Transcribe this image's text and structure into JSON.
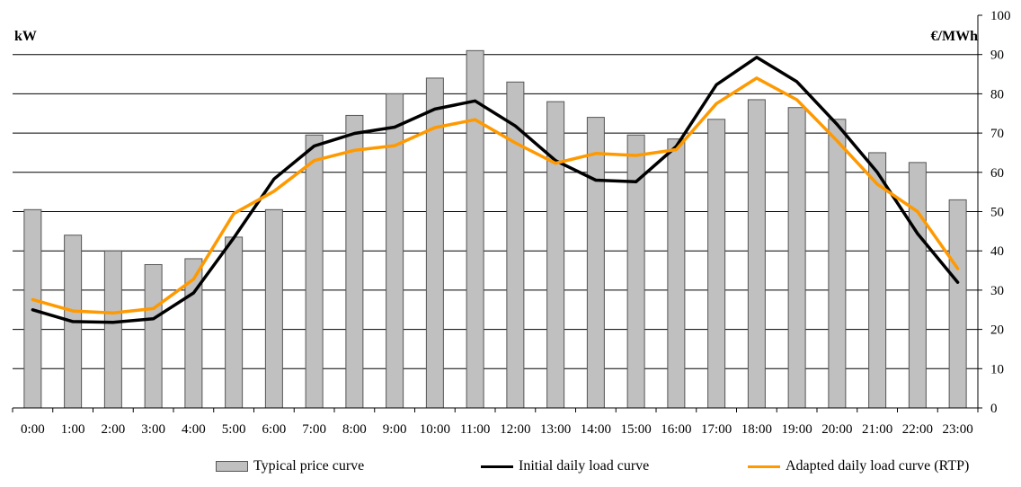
{
  "chart_data": {
    "type": "bar+line",
    "categories": [
      "0:00",
      "1:00",
      "2:00",
      "3:00",
      "4:00",
      "5:00",
      "6:00",
      "7:00",
      "8:00",
      "9:00",
      "10:00",
      "11:00",
      "12:00",
      "13:00",
      "14:00",
      "15:00",
      "16:00",
      "17:00",
      "18:00",
      "19:00",
      "20:00",
      "21:00",
      "22:00",
      "23:00"
    ],
    "left_axis": {
      "label": "kW",
      "min": 0,
      "max": 100,
      "gridlines": [
        10,
        20,
        30,
        40,
        50,
        60,
        70,
        80,
        90
      ]
    },
    "right_axis": {
      "label": "€/MWh",
      "min": 0,
      "max": 100,
      "step": 10,
      "tick_labels": [
        "0",
        "10",
        "20",
        "30",
        "40",
        "50",
        "60",
        "70",
        "80",
        "90",
        "100"
      ]
    },
    "grid": true,
    "legend_position": "bottom",
    "series": [
      {
        "name": "Typical price curve",
        "type": "bar",
        "axis": "right",
        "color": "#c0c0c0",
        "values": [
          50.5,
          44,
          40,
          36.5,
          38,
          43.5,
          50.5,
          69.5,
          74.5,
          80,
          84,
          91,
          83,
          78,
          74,
          69.5,
          68.5,
          73.5,
          78.5,
          76.5,
          73.5,
          65,
          62.5,
          53
        ]
      },
      {
        "name": "Initial daily load curve",
        "type": "line",
        "axis": "right",
        "color": "#000000",
        "values": [
          25,
          22,
          21.8,
          22.7,
          29.3,
          43.3,
          58.3,
          66.7,
          69.9,
          71.5,
          76.1,
          78.2,
          71.8,
          63,
          58,
          57.6,
          66.6,
          82.3,
          89.3,
          83.1,
          72.2,
          60,
          44.4,
          32
        ]
      },
      {
        "name": "Adapted daily load curve (RTP)",
        "type": "line",
        "axis": "right",
        "color": "#ff9900",
        "values": [
          27.6,
          24.7,
          24.2,
          25.3,
          32.8,
          49.5,
          55.2,
          63,
          65.6,
          66.8,
          71.4,
          73.4,
          67.5,
          62.3,
          64.8,
          64.3,
          65.8,
          77.5,
          84,
          78.5,
          68,
          57,
          50,
          35.5
        ]
      }
    ]
  }
}
